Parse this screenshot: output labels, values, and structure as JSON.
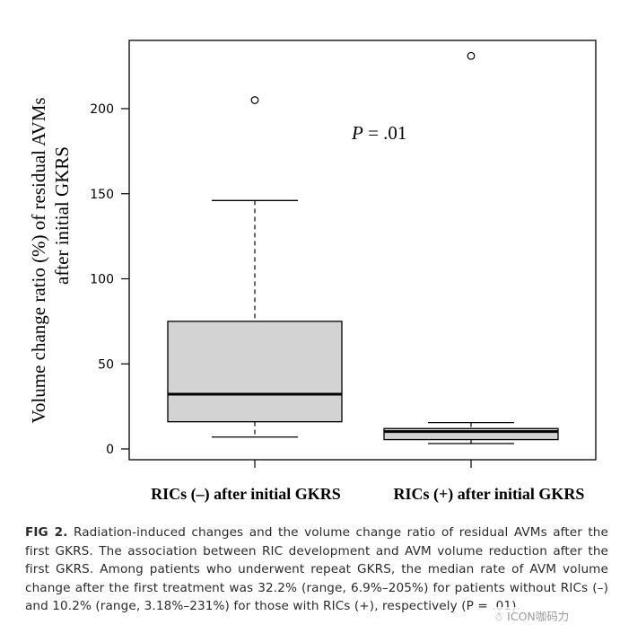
{
  "chart_data": {
    "type": "box",
    "ylabel_line1": "Volume change ratio (%) of residual AVMs",
    "ylabel_line2": "after initial GKRS",
    "ylim": [
      -3,
      240
    ],
    "yticks": [
      0,
      50,
      100,
      150,
      200
    ],
    "annotation": {
      "prefix": "P",
      "text": " = .01"
    },
    "categories": [
      "RICs (–) after initial GKRS",
      "RICs (+) after initial GKRS"
    ],
    "boxes": [
      {
        "name": "RICs (–) after initial GKRS",
        "whisker_low": 7,
        "q1": 16,
        "median": 32.2,
        "q3": 75,
        "whisker_high": 146,
        "outliers": [
          205
        ]
      },
      {
        "name": "RICs (+) after initial GKRS",
        "whisker_low": 3.18,
        "q1": 5.5,
        "median": 10.2,
        "q3": 12,
        "whisker_high": 15.5,
        "outliers": [
          231
        ]
      }
    ],
    "box_fill": "#d3d3d3",
    "stroke": "#000000"
  },
  "caption": {
    "label": "FIG 2.",
    "text": "Radiation-induced changes and the volume change ratio of residual AVMs after the first GKRS. The association between RIC development and AVM volume reduction after the first GKRS. Among patients who underwent repeat GKRS, the median rate of AVM volume change after the first treatment was 32.2% (range, 6.9%–205%) for patients without RICs (–) and 10.2% (range, 3.18%–231%) for those with RICs (+), respectively (P = .01)."
  },
  "watermark": "☃ ICON咖码力"
}
